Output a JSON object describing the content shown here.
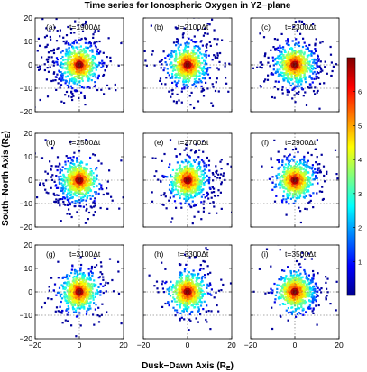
{
  "chart_data": {
    "type": "scatter",
    "title": "Time series for Ionospheric Oxygen in YZ−plane",
    "xlabel": "Dusk−Dawn Axis (R",
    "xlabel_sub": "E",
    "xlabel_close": ")",
    "ylabel": "South−North Axis (R",
    "ylabel_sub": "E",
    "ylabel_close": ")",
    "xlim": [
      -20,
      20
    ],
    "ylim": [
      -20,
      20
    ],
    "x_ticks": [
      -20,
      0,
      20
    ],
    "y_ticks": [
      -20,
      -10,
      0,
      10,
      20
    ],
    "x_tick_labels": [
      "−20",
      "0",
      "20"
    ],
    "y_tick_labels": [
      "−20",
      "−10",
      "0",
      "10",
      "20"
    ],
    "reference_lines": [
      0,
      -10
    ],
    "colorbar": {
      "range": [
        0,
        7
      ],
      "ticks": [
        1,
        2,
        3,
        4,
        5,
        6
      ],
      "tick_labels": [
        "1",
        "2",
        "3",
        "4",
        "5",
        "6"
      ],
      "colormap": [
        "#00008f",
        "#0000ff",
        "#007fff",
        "#00ffff",
        "#7fff7f",
        "#ffff00",
        "#ff7f00",
        "#ff0000",
        "#7f0000"
      ]
    },
    "panels": [
      {
        "label": "(a)",
        "time": "t=1900Δt",
        "step": 1900,
        "spread": 1.0,
        "skew_x": -0.5,
        "skew_y": 0.2
      },
      {
        "label": "(b)",
        "time": "t=2100Δt",
        "step": 2100,
        "spread": 0.95,
        "skew_x": 0.2,
        "skew_y": 0.1
      },
      {
        "label": "(c)",
        "time": "t=2300Δt",
        "step": 2300,
        "spread": 0.9,
        "skew_x": 0.1,
        "skew_y": 0.0
      },
      {
        "label": "(d)",
        "time": "t=2500Δt",
        "step": 2500,
        "spread": 0.85,
        "skew_x": -0.4,
        "skew_y": -0.4
      },
      {
        "label": "(e)",
        "time": "t=2700Δt",
        "step": 2700,
        "spread": 0.8,
        "skew_x": 0.4,
        "skew_y": -0.2
      },
      {
        "label": "(f)",
        "time": "t=2900Δt",
        "step": 2900,
        "spread": 0.75,
        "skew_x": 0.3,
        "skew_y": 0.2
      },
      {
        "label": "(g)",
        "time": "t=3100Δt",
        "step": 3100,
        "spread": 0.72,
        "skew_x": -0.1,
        "skew_y": 0.0
      },
      {
        "label": "(h)",
        "time": "t=3300Δt",
        "step": 3300,
        "spread": 0.7,
        "skew_x": 0.2,
        "skew_y": 0.1
      },
      {
        "label": "(i)",
        "time": "t=3500Δt",
        "step": 3500,
        "spread": 0.7,
        "skew_x": 0.3,
        "skew_y": 0.1
      }
    ]
  }
}
